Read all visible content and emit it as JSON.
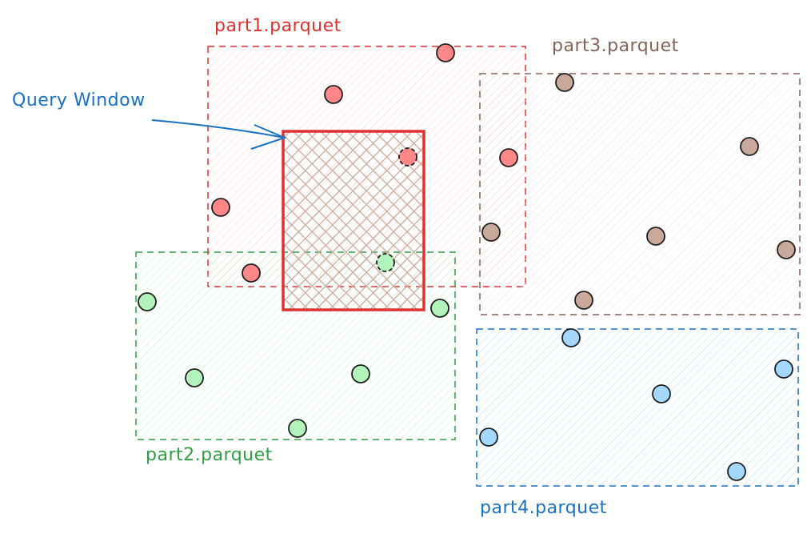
{
  "query_window": {
    "label": "Query Window",
    "stroke": "#e03131",
    "hatch": "#c9a99a",
    "label_color": "#1971c2"
  },
  "partitions": [
    {
      "id": "part1",
      "label": "part1.parquet",
      "stroke": "#e03131",
      "fill": "#ffc9c9",
      "point": "#ff8787"
    },
    {
      "id": "part2",
      "label": "part2.parquet",
      "stroke": "#2f9e44",
      "fill": "#b2f2bb",
      "point": "#b2f2bb"
    },
    {
      "id": "part3",
      "label": "part3.parquet",
      "stroke": "#846358",
      "fill": "#eaddd7",
      "point": "#c9a99a"
    },
    {
      "id": "part4",
      "label": "part4.parquet",
      "stroke": "#1971c2",
      "fill": "#a5d8ff",
      "point": "#a5d8ff"
    }
  ]
}
